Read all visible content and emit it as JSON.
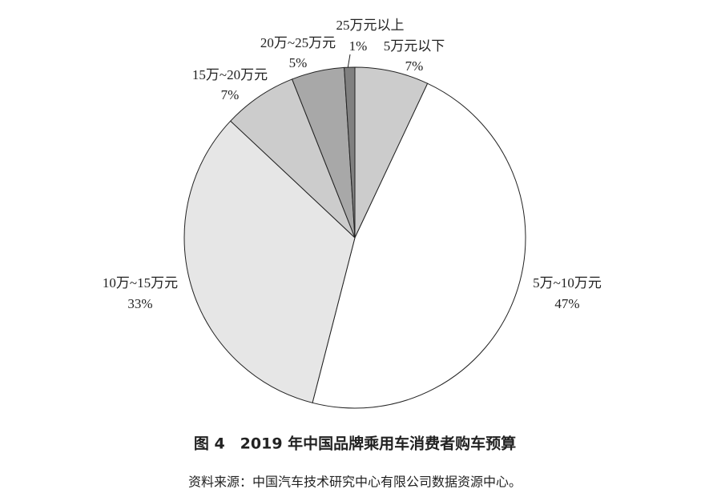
{
  "chart_data": {
    "type": "pie",
    "title": "图 4　2019 年中国品牌乘用车消费者购车预算",
    "source": "资料来源：中国汽车技术研究中心有限公司数据资源中心。",
    "categories": [
      "5万元以下",
      "5万~10万元",
      "10万~15万元",
      "15万~20万元",
      "20万~25万元",
      "25万元以上"
    ],
    "values": [
      7,
      47,
      33,
      7,
      5,
      1
    ],
    "value_labels": [
      "7%",
      "47%",
      "33%",
      "7%",
      "5%",
      "1%"
    ],
    "colors": [
      "#cccccc",
      "#ffffff",
      "#e6e6e6",
      "#cccccc",
      "#a8a8a8",
      "#808080"
    ]
  }
}
